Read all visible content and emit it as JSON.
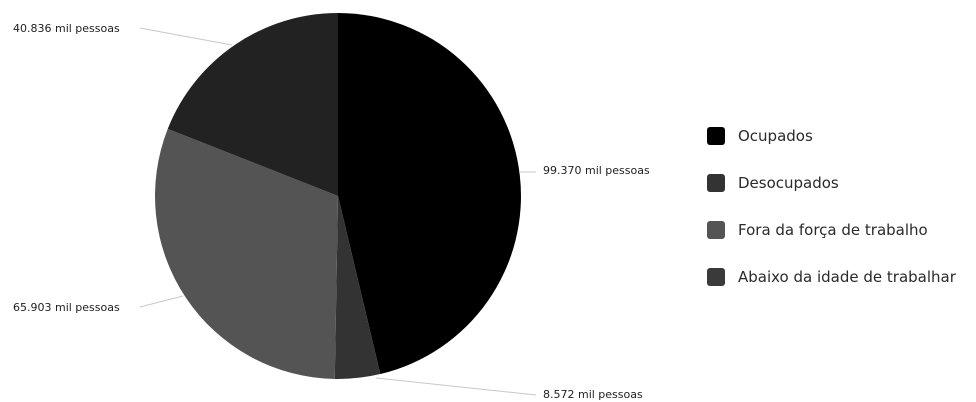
{
  "chart_data": {
    "type": "pie",
    "title": "",
    "slices": [
      {
        "name": "Ocupados",
        "value": 99370,
        "label": "99.370 mil pessoas",
        "color": "#000000"
      },
      {
        "name": "Desocupados",
        "value": 8572,
        "label": "8.572 mil pessoas",
        "color": "#333333"
      },
      {
        "name": "Fora da força de trabalho",
        "value": 65903,
        "label": "65.903 mil pessoas",
        "color": "#545454"
      },
      {
        "name": "Abaixo da idade de trabalhar",
        "value": 40836,
        "label": "40.836 mil pessoas",
        "color": "#222222"
      }
    ],
    "legend_position": "right",
    "start_angle": "12 o'clock, clockwise"
  },
  "legend": {
    "items": [
      {
        "label": "Ocupados",
        "color": "#000000"
      },
      {
        "label": "Desocupados",
        "color": "#333333"
      },
      {
        "label": "Fora da força de trabalho",
        "color": "#545454"
      },
      {
        "label": "Abaixo da idade de trabalhar",
        "color": "#3a3a3a"
      }
    ]
  }
}
